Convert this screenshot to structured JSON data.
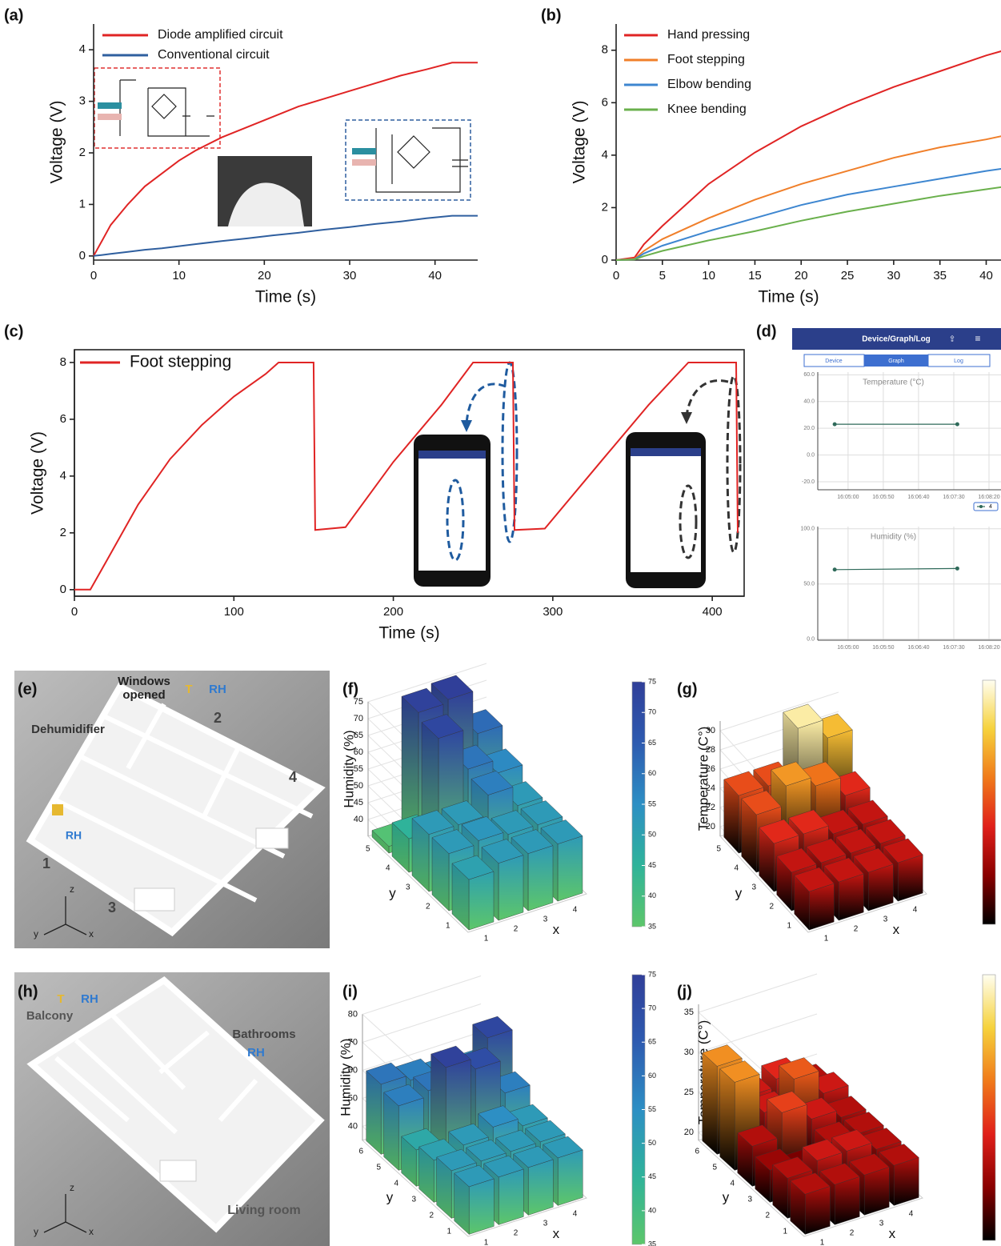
{
  "chart_data": [
    {
      "type": "line",
      "xlabel": "Time (s)",
      "ylabel": "Voltage (V)",
      "xlim": [
        0,
        45
      ],
      "ylim": [
        -0.08,
        4.5
      ],
      "xticks": [
        0,
        10,
        20,
        30,
        40
      ],
      "yticks": [
        0,
        1,
        2,
        3,
        4
      ],
      "legend": "upper left",
      "x": [
        0,
        1,
        2,
        4,
        6,
        8,
        10,
        12,
        15,
        18,
        21,
        24,
        27,
        30,
        33,
        36,
        39,
        42,
        45
      ],
      "series": [
        {
          "name": "Diode amplified circuit",
          "color": "#e02424",
          "values": [
            0,
            0.3,
            0.6,
            1.0,
            1.35,
            1.6,
            1.85,
            2.05,
            2.3,
            2.5,
            2.7,
            2.9,
            3.05,
            3.2,
            3.35,
            3.5,
            3.62,
            3.75,
            3.75
          ]
        },
        {
          "name": "Conventional circuit",
          "color": "#2f5f9f",
          "values": [
            0,
            0.02,
            0.04,
            0.08,
            0.12,
            0.15,
            0.19,
            0.23,
            0.29,
            0.34,
            0.4,
            0.45,
            0.51,
            0.56,
            0.62,
            0.67,
            0.73,
            0.78,
            0.78
          ]
        }
      ]
    },
    {
      "type": "line",
      "xlabel": "Time (s)",
      "ylabel": "Voltage (V)",
      "xlim": [
        0,
        41.6
      ],
      "ylim": [
        0,
        9
      ],
      "xticks": [
        0,
        5,
        10,
        15,
        20,
        25,
        30,
        35,
        40
      ],
      "yticks": [
        0,
        2,
        4,
        6,
        8
      ],
      "legend": "upper left",
      "x": [
        0,
        2,
        3,
        5,
        10,
        15,
        20,
        25,
        30,
        35,
        40,
        42
      ],
      "series": [
        {
          "name": "Hand pressing",
          "color": "#e02424",
          "values": [
            0,
            0.1,
            0.6,
            1.3,
            2.9,
            4.1,
            5.1,
            5.9,
            6.6,
            7.2,
            7.8,
            8.0
          ]
        },
        {
          "name": "Foot stepping",
          "color": "#f07f2a",
          "values": [
            0,
            0.05,
            0.35,
            0.8,
            1.6,
            2.3,
            2.9,
            3.4,
            3.9,
            4.3,
            4.6,
            4.75
          ]
        },
        {
          "name": "Elbow bending",
          "color": "#3d86d0",
          "values": [
            0,
            0.03,
            0.25,
            0.55,
            1.1,
            1.6,
            2.1,
            2.5,
            2.8,
            3.1,
            3.4,
            3.5
          ]
        },
        {
          "name": "Knee bending",
          "color": "#6ab04c",
          "values": [
            0,
            0.02,
            0.15,
            0.35,
            0.75,
            1.1,
            1.5,
            1.85,
            2.15,
            2.45,
            2.7,
            2.8
          ]
        }
      ]
    },
    {
      "type": "line",
      "xlabel": "Time (s)",
      "ylabel": "Voltage (V)",
      "xlim": [
        0,
        420
      ],
      "ylim": [
        -0.23,
        8.45
      ],
      "xticks": [
        0,
        100,
        200,
        300,
        400
      ],
      "yticks": [
        0,
        2,
        4,
        6,
        8
      ],
      "legend": "upper left",
      "box": true,
      "x": [
        0,
        10,
        20,
        40,
        60,
        80,
        100,
        120,
        128,
        150,
        151,
        170,
        200,
        230,
        250,
        275,
        276,
        295,
        330,
        360,
        385,
        415,
        416
      ],
      "series": [
        {
          "name": "Foot stepping",
          "color": "#e02424",
          "values": [
            0,
            0,
            1.0,
            3.0,
            4.6,
            5.8,
            6.8,
            7.6,
            8.0,
            8.0,
            2.1,
            2.2,
            4.5,
            6.5,
            8.0,
            8.0,
            2.1,
            2.15,
            4.5,
            6.5,
            8.0,
            8.0,
            2.0
          ]
        }
      ]
    },
    {
      "type": "line",
      "title": "Temperature (°C)",
      "grid": true,
      "markers": true,
      "legend": "below right",
      "xlim": [
        57857,
        58117
      ],
      "ylim": [
        -26,
        62
      ],
      "xticks": [
        {
          "value": 57900,
          "label": "16:05:00"
        },
        {
          "value": 57950,
          "label": "16:05:50"
        },
        {
          "value": 58000,
          "label": "16:06:40"
        },
        {
          "value": 58050,
          "label": "16:07:30"
        },
        {
          "value": 58100,
          "label": "16:08:20"
        }
      ],
      "yticks": [
        {
          "value": -20,
          "label": "-20.0"
        },
        {
          "value": 0,
          "label": "0.0"
        },
        {
          "value": 20,
          "label": "20.0"
        },
        {
          "value": 40,
          "label": "40.0"
        },
        {
          "value": 60,
          "label": "60.0"
        }
      ],
      "series": [
        {
          "name": "4",
          "color": "#2f6a5a",
          "x": [
            57881,
            58055
          ],
          "values": [
            23,
            23
          ]
        }
      ]
    },
    {
      "type": "line",
      "title": "Humidity (%)",
      "grid": true,
      "markers": true,
      "xlim": [
        57857,
        58117
      ],
      "ylim": [
        -1,
        102
      ],
      "xticks": [
        {
          "value": 57900,
          "label": "16:05:00"
        },
        {
          "value": 57950,
          "label": "16:05:50"
        },
        {
          "value": 58000,
          "label": "16:06:40"
        },
        {
          "value": 58050,
          "label": "16:07:30"
        },
        {
          "value": 58100,
          "label": "16:08:20"
        }
      ],
      "yticks": [
        {
          "value": 0,
          "label": "0.0"
        },
        {
          "value": 50,
          "label": "50.0"
        },
        {
          "value": 100,
          "label": "100.0"
        }
      ],
      "series": [
        {
          "color": "#2f6a5a",
          "x": [
            57881,
            58055
          ],
          "values": [
            63,
            64
          ]
        }
      ]
    },
    {
      "type": "bar3d",
      "zlabel": "Humidity  (%)",
      "xlabel": "x",
      "ylabel": "y",
      "x": [
        1,
        2,
        3,
        4
      ],
      "y": [
        1,
        2,
        3,
        4,
        5
      ],
      "values": [
        [
          50,
          52,
          52,
          52
        ],
        [
          52,
          53,
          52,
          52
        ],
        [
          52,
          52,
          58,
          52
        ],
        [
          45,
          72,
          60,
          56
        ],
        [
          37,
          74,
          75,
          62
        ]
      ],
      "zlim": [
        35,
        75
      ],
      "zticks": [
        40,
        45,
        50,
        55,
        60,
        65,
        70,
        75
      ],
      "clim": [
        35,
        75
      ],
      "cticks": [
        35,
        40,
        45,
        50,
        55,
        60,
        65,
        70,
        75
      ],
      "colormap": [
        "#5dc66a",
        "#2fb39a",
        "#2d8fc4",
        "#2e5bb0",
        "#303f99"
      ]
    },
    {
      "type": "bar3d",
      "zlabel": "Temperature (C°)",
      "xlabel": "x",
      "ylabel": "y",
      "x": [
        1,
        2,
        3,
        4
      ],
      "y": [
        1,
        2,
        3,
        4,
        5
      ],
      "values": [
        [
          23,
          23,
          23,
          23
        ],
        [
          23,
          23,
          23,
          23
        ],
        [
          24,
          24,
          23,
          23
        ],
        [
          25,
          27,
          26,
          24
        ],
        [
          25,
          25,
          30,
          28
        ]
      ],
      "zlim": [
        19,
        31
      ],
      "zticks": [
        20,
        22,
        24,
        26,
        28,
        30
      ],
      "colormap": [
        "#000000",
        "#8a0000",
        "#e0201a",
        "#f07a1a",
        "#f6d23c",
        "#fffef0"
      ]
    },
    {
      "type": "bar3d",
      "zlabel": "Humidity  (%)",
      "xlabel": "x",
      "ylabel": "y",
      "x": [
        1,
        2,
        3,
        4
      ],
      "y": [
        1,
        2,
        3,
        4,
        5,
        6
      ],
      "values": [
        [
          52,
          52,
          52,
          52
        ],
        [
          52,
          52,
          52,
          52
        ],
        [
          50,
          52,
          55,
          52
        ],
        [
          48,
          74,
          70,
          58
        ],
        [
          58,
          60,
          55,
          72
        ],
        [
          60,
          58,
          56,
          55
        ]
      ],
      "zlim": [
        35,
        80
      ],
      "zticks": [
        40,
        50,
        60,
        70,
        80
      ],
      "clim": [
        35,
        75
      ],
      "cticks": [
        35,
        40,
        45,
        50,
        55,
        60,
        65,
        70,
        75
      ],
      "colormap": [
        "#5dc66a",
        "#2fb39a",
        "#2d8fc4",
        "#2e5bb0",
        "#303f99"
      ]
    },
    {
      "type": "bar3d",
      "zlabel": "Temperature (C°)",
      "xlabel": "x",
      "ylabel": "y",
      "x": [
        1,
        2,
        3,
        4
      ],
      "y": [
        1,
        2,
        3,
        4,
        5,
        6
      ],
      "values": [
        [
          24,
          24,
          24,
          24
        ],
        [
          24,
          25,
          25,
          24
        ],
        [
          23,
          22,
          24,
          24
        ],
        [
          24,
          27,
          25,
          24
        ],
        [
          30,
          25,
          28,
          25
        ],
        [
          30,
          25,
          26,
          24
        ]
      ],
      "zlim": [
        19,
        36
      ],
      "zticks": [
        20,
        25,
        30,
        35
      ],
      "colormap": [
        "#000000",
        "#8a0000",
        "#e0201a",
        "#f07a1a",
        "#f6d23c",
        "#fffef0"
      ]
    }
  ],
  "panel_labels": [
    "(a)",
    "(b)",
    "(c)",
    "(d)",
    "(e)",
    "(f)",
    "(g)",
    "(h)",
    "(i)",
    "(j)"
  ],
  "app": {
    "header": "Device/Graph/Log",
    "tabs": [
      "Device",
      "Graph",
      "Log"
    ]
  },
  "scenes": [
    {
      "labels": [
        "Windows",
        "opened",
        "T",
        "RH",
        "2",
        "Dehumidifier",
        "4",
        "RH",
        "1",
        "3",
        "z",
        "y",
        "x"
      ]
    },
    {
      "labels": [
        "T",
        "RH",
        "Balcony",
        "Bathrooms",
        "RH",
        "Living room",
        "z",
        "y",
        "x"
      ]
    }
  ]
}
